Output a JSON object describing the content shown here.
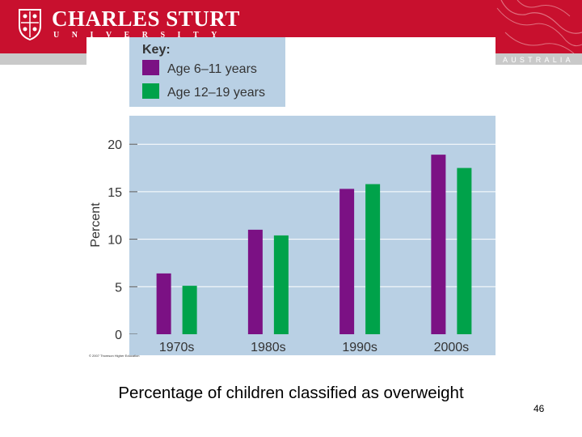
{
  "header": {
    "university_name": "CHARLES STURT",
    "university_sub": "UNIVERSITY",
    "country": "AUSTRALIA",
    "brand_color": "#c8102e"
  },
  "chart_data": {
    "type": "bar",
    "categories": [
      "1970s",
      "1980s",
      "1990s",
      "2000s"
    ],
    "series": [
      {
        "name": "Age 6–11 years",
        "color": "#7b1184",
        "values": [
          6.4,
          11.0,
          15.3,
          18.9
        ]
      },
      {
        "name": "Age 12–19 years",
        "color": "#00a24a",
        "values": [
          5.1,
          10.4,
          15.8,
          17.5
        ]
      }
    ],
    "legend_title": "Key:",
    "legend_position": "top-left, above plot",
    "ylabel": "Percent",
    "xlabel": "",
    "ylim": [
      0,
      23
    ],
    "yticks": [
      0,
      5,
      10,
      15,
      20
    ],
    "grid": true,
    "plot_background": "#b9d0e4"
  },
  "figure": {
    "copyright": "© 2007 Thomson Higher Education"
  },
  "slide": {
    "caption": "Percentage of children classified as overweight",
    "page_number": "46"
  }
}
